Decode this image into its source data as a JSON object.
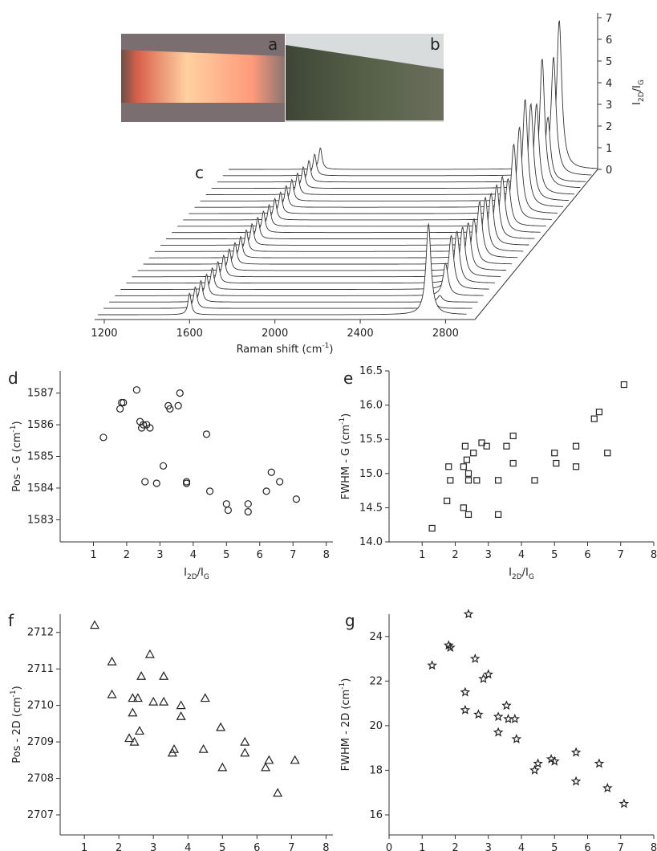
{
  "photos": [
    {
      "label": "a"
    },
    {
      "label": "b"
    }
  ],
  "chart_data": [
    {
      "type": "waterfall",
      "panel": "c",
      "xlabel": {
        "parts": [
          "Raman shift (cm",
          "-1",
          ")"
        ],
        "shift": "super"
      },
      "zlabel": {
        "parts": [
          "I",
          "2D",
          "/I",
          "G"
        ],
        "shift": "sub"
      },
      "xlim": [
        1170,
        2900
      ],
      "xticks": [
        1200,
        1600,
        2000,
        2400,
        2800
      ],
      "zlim": [
        0,
        7
      ],
      "zticks": [
        0,
        1,
        2,
        3,
        4,
        5,
        6,
        7
      ],
      "peaks": [
        1600,
        2720
      ],
      "series": [
        {
          "name": "I2D/IG",
          "color": "#333333",
          "values": [
            4.2,
            0.3,
            0.3,
            1.5,
            2.5,
            2.4,
            2.3,
            2.2,
            2.1,
            2.6,
            2.5,
            2.4,
            2.5,
            2.6,
            2.2,
            3.5,
            4.0,
            5.0,
            4.5,
            4.2,
            6.0,
            3.0,
            5.5,
            6.9
          ]
        }
      ]
    },
    {
      "type": "scatter",
      "panel": "d",
      "marker": "circle",
      "xlabel": {
        "parts": [
          "I",
          "2D",
          "/I",
          "G"
        ],
        "shift": "sub"
      },
      "ylabel": {
        "parts": [
          "Pos - G (cm",
          "-1",
          ")"
        ],
        "shift": "super"
      },
      "xlim": [
        0,
        8.2
      ],
      "xticks": [
        1,
        2,
        3,
        4,
        5,
        6,
        7,
        8
      ],
      "ylim": [
        1582.3,
        1587.7
      ],
      "yticks": [
        1583,
        1584,
        1585,
        1586,
        1587
      ],
      "x": [
        1.3,
        1.8,
        1.85,
        1.9,
        2.3,
        2.4,
        2.45,
        2.5,
        2.6,
        2.55,
        2.7,
        2.9,
        3.1,
        3.25,
        3.3,
        3.55,
        3.6,
        3.8,
        3.8,
        4.4,
        4.5,
        5.0,
        5.05,
        5.65,
        5.65,
        6.2,
        6.35,
        6.6,
        7.1
      ],
      "y": [
        1585.6,
        1586.5,
        1586.7,
        1586.7,
        1587.1,
        1586.1,
        1585.9,
        1586.0,
        1586.0,
        1584.2,
        1585.9,
        1584.15,
        1584.7,
        1586.6,
        1586.5,
        1586.6,
        1587.0,
        1584.2,
        1584.15,
        1585.7,
        1583.9,
        1583.5,
        1583.3,
        1583.5,
        1583.25,
        1583.9,
        1584.5,
        1584.2,
        1583.65
      ]
    },
    {
      "type": "scatter",
      "panel": "e",
      "marker": "square",
      "xlabel": {
        "parts": [
          "I",
          "2D",
          "/I",
          "G"
        ],
        "shift": "sub"
      },
      "ylabel": {
        "parts": [
          "FWHM - G (cm",
          "-1",
          ")"
        ],
        "shift": "super"
      },
      "xlim": [
        0,
        8
      ],
      "xticks": [
        1,
        2,
        3,
        4,
        5,
        6,
        7,
        8
      ],
      "ylim": [
        14,
        16.5
      ],
      "yticks": [
        {
          "value": 14,
          "label": "14.0"
        },
        14.5,
        {
          "value": 15,
          "label": "15.0"
        },
        15.5,
        {
          "value": 16,
          "label": "16.0"
        },
        16.5
      ],
      "x": [
        1.3,
        1.75,
        1.8,
        1.85,
        2.25,
        2.3,
        2.25,
        2.35,
        2.4,
        2.4,
        2.4,
        2.55,
        2.65,
        2.8,
        2.95,
        3.3,
        3.3,
        3.55,
        3.75,
        3.75,
        4.4,
        5.0,
        5.05,
        5.65,
        5.65,
        6.2,
        6.35,
        6.6,
        7.1
      ],
      "y": [
        14.2,
        14.6,
        15.1,
        14.9,
        14.5,
        15.4,
        15.1,
        15.2,
        15.0,
        14.9,
        14.4,
        15.3,
        14.9,
        15.45,
        15.4,
        14.9,
        14.4,
        15.4,
        15.55,
        15.15,
        14.9,
        15.3,
        15.15,
        15.4,
        15.1,
        15.8,
        15.9,
        15.3,
        16.3
      ]
    },
    {
      "type": "scatter",
      "panel": "f",
      "marker": "triangle",
      "xlabel": {
        "parts": [
          "I",
          "2D",
          "/I",
          "G"
        ],
        "shift": "sub"
      },
      "ylabel": {
        "parts": [
          "Pos - 2D (cm",
          "-1",
          ")"
        ],
        "shift": "super"
      },
      "xlim": [
        0.3,
        8.2
      ],
      "xticks": [
        1,
        2,
        3,
        4,
        5,
        6,
        7,
        8
      ],
      "ylim": [
        2706.45,
        2712.5
      ],
      "yticks": [
        2707,
        2708,
        2709,
        2710,
        2711,
        2712
      ],
      "x": [
        1.3,
        1.8,
        1.8,
        2.3,
        2.4,
        2.4,
        2.45,
        2.55,
        2.6,
        2.65,
        2.9,
        3.0,
        3.3,
        3.3,
        3.55,
        3.6,
        3.8,
        3.8,
        4.45,
        4.5,
        4.95,
        5.0,
        5.65,
        5.65,
        6.25,
        6.35,
        6.6,
        7.1
      ],
      "y": [
        2712.2,
        2711.2,
        2710.3,
        2709.1,
        2710.2,
        2709.8,
        2709.0,
        2710.2,
        2709.3,
        2710.8,
        2711.4,
        2710.1,
        2710.8,
        2710.1,
        2708.7,
        2708.8,
        2710.0,
        2709.7,
        2708.8,
        2710.2,
        2709.4,
        2708.3,
        2709.0,
        2708.7,
        2708.3,
        2708.5,
        2707.6,
        2708.5
      ]
    },
    {
      "type": "scatter",
      "panel": "g",
      "marker": "star",
      "xlabel": {
        "parts": [
          "I",
          "2D",
          "/I",
          "G"
        ],
        "shift": "sub"
      },
      "ylabel": {
        "parts": [
          "FWHM - 2D (cm",
          "-1",
          ")"
        ],
        "shift": "super"
      },
      "xlim": [
        0,
        8
      ],
      "xticks": [
        0,
        1,
        2,
        3,
        4,
        5,
        6,
        7,
        8
      ],
      "ylim": [
        15.1,
        25
      ],
      "yticks": [
        16,
        18,
        20,
        22,
        24
      ],
      "x": [
        1.3,
        1.8,
        1.85,
        2.3,
        2.3,
        2.4,
        2.6,
        2.7,
        2.85,
        3.0,
        3.3,
        3.3,
        3.55,
        3.6,
        3.8,
        3.85,
        4.4,
        4.5,
        4.9,
        5.0,
        5.65,
        5.65,
        6.35,
        6.6,
        7.1
      ],
      "y": [
        22.7,
        23.6,
        23.5,
        21.5,
        20.7,
        25.0,
        23.0,
        20.5,
        22.1,
        22.3,
        20.4,
        19.7,
        20.9,
        20.3,
        20.3,
        19.4,
        18.0,
        18.3,
        18.5,
        18.4,
        18.8,
        17.5,
        18.3,
        17.2,
        16.5
      ]
    }
  ]
}
